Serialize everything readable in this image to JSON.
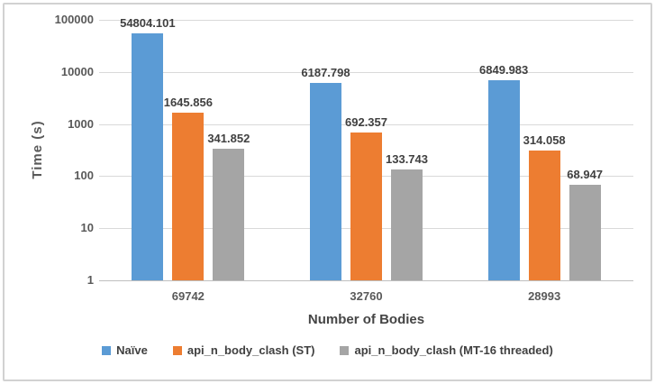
{
  "chart_data": {
    "type": "bar",
    "title": "",
    "xlabel": "Number of Bodies",
    "ylabel": "Time (s)",
    "y_scale": "log10",
    "ylim": [
      1,
      100000
    ],
    "yticks": [
      1,
      10,
      100,
      1000,
      10000,
      100000
    ],
    "grid": true,
    "legend_position": "bottom",
    "data_labels": true,
    "data_label_decimals": 3,
    "categories": [
      "69742",
      "32760",
      "28993"
    ],
    "series": [
      {
        "name": "Naïve",
        "color": "#5B9BD5",
        "values": [
          54804.101,
          6187.798,
          6849.983
        ]
      },
      {
        "name": "api_n_body_clash (ST)",
        "color": "#ED7D31",
        "values": [
          1645.856,
          692.357,
          314.058
        ]
      },
      {
        "name": "api_n_body_clash (MT-16 threaded)",
        "color": "#A5A5A5",
        "values": [
          341.852,
          133.743,
          68.947
        ]
      }
    ],
    "data_label_color": "#404040",
    "tick_label_color": "#595959"
  }
}
